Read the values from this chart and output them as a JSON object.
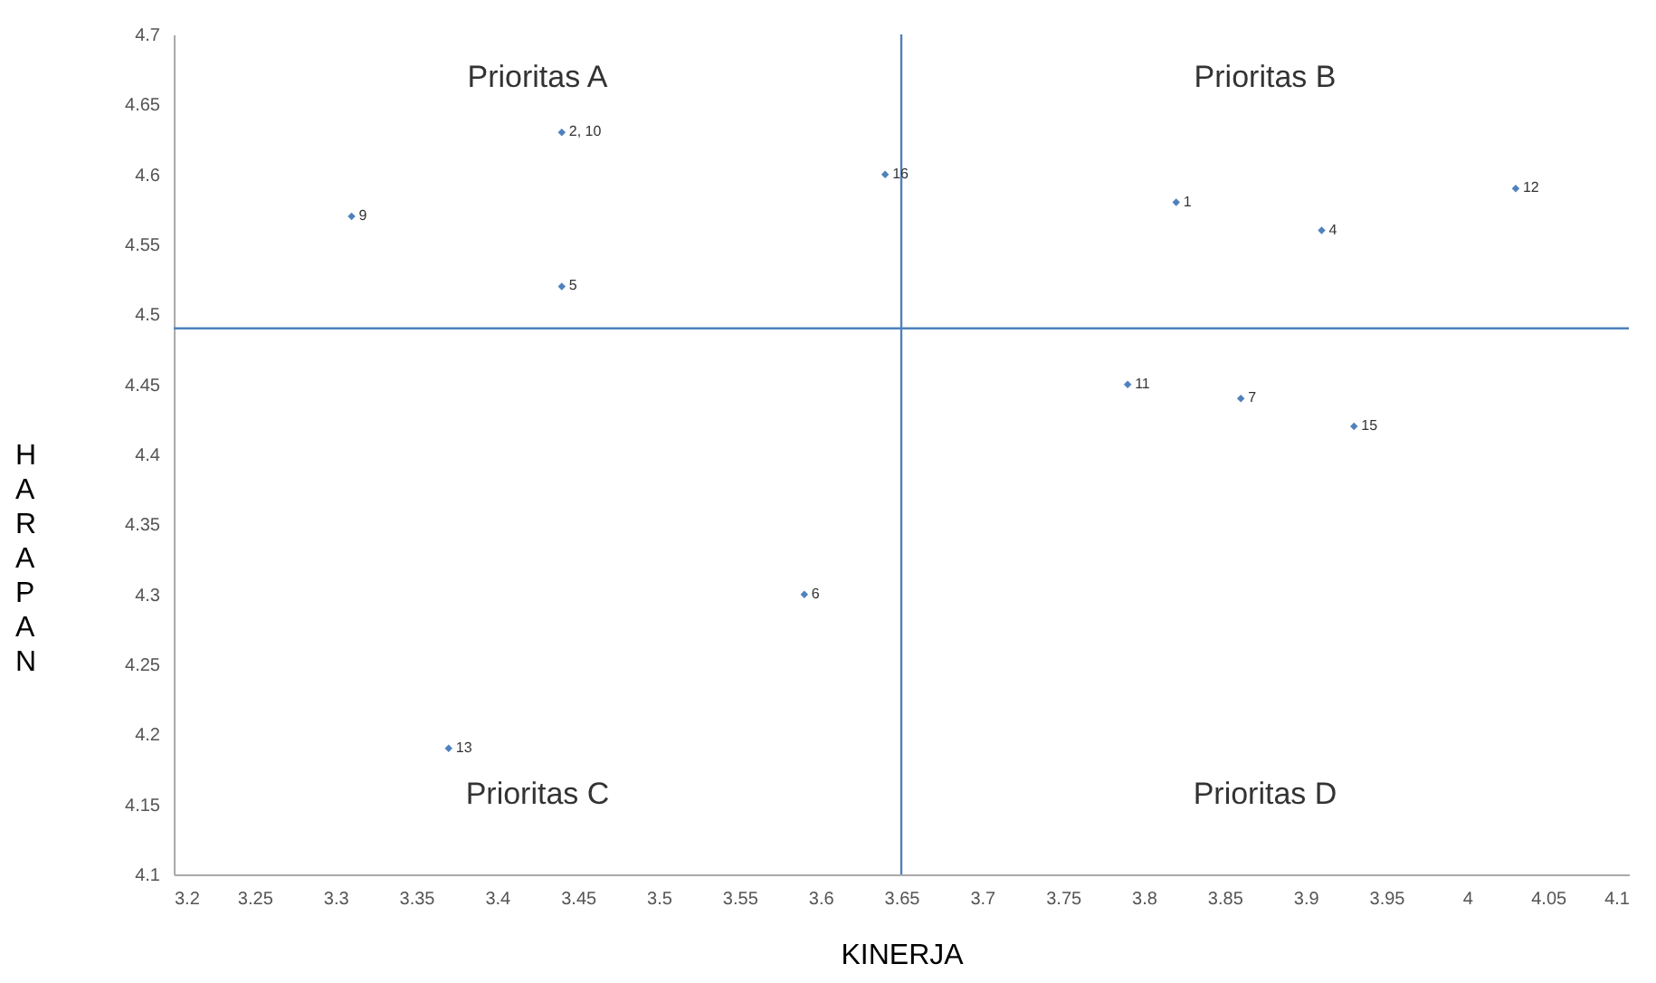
{
  "chart_data": {
    "type": "scatter",
    "xlabel": "KINERJA",
    "ylabel": "HARAPAN",
    "x": [
      3.44,
      3.31,
      3.44,
      3.64,
      3.82,
      3.91,
      4.03,
      3.79,
      3.86,
      3.93,
      3.59,
      3.37
    ],
    "series": [
      {
        "color": "#4f81bd",
        "values": [
          4.63,
          4.57,
          4.52,
          4.6,
          4.58,
          4.56,
          4.59,
          4.45,
          4.44,
          4.42,
          4.3,
          4.19
        ]
      }
    ],
    "marker": "diamond",
    "xlim": [
      3.2,
      4.1
    ],
    "xticks": [
      3.2,
      3.25,
      3.3,
      3.35,
      3.4,
      3.45,
      3.5,
      3.55,
      3.6,
      3.65,
      3.7,
      3.75,
      3.8,
      3.85,
      3.9,
      3.95,
      4,
      4.05,
      4.1
    ],
    "ylim": [
      4.1,
      4.7
    ],
    "yticks": [
      4.1,
      4.15,
      4.2,
      4.25,
      4.3,
      4.35,
      4.4,
      4.45,
      4.5,
      4.55,
      4.6,
      4.65,
      4.7
    ],
    "ref_lines": [
      {
        "axis": "x",
        "value": 3.65,
        "color": "#4f81bd"
      },
      {
        "axis": "y",
        "value": 4.49,
        "color": "#4f81bd"
      }
    ],
    "annotations": [
      "Prioritas A",
      "Prioritas B",
      "Prioritas C",
      "Prioritas D",
      {
        "text": "2, 10",
        "x": 3.44,
        "y": 4.63
      },
      {
        "text": "9",
        "x": 3.31,
        "y": 4.57
      },
      {
        "text": "5",
        "x": 3.44,
        "y": 4.52
      },
      {
        "text": "16",
        "x": 3.64,
        "y": 4.6
      },
      {
        "text": "1",
        "x": 3.82,
        "y": 4.58
      },
      {
        "text": "4",
        "x": 3.91,
        "y": 4.56
      },
      {
        "text": "12",
        "x": 4.03,
        "y": 4.59
      },
      {
        "text": "11",
        "x": 3.79,
        "y": 4.45
      },
      {
        "text": "7",
        "x": 3.86,
        "y": 4.44
      },
      {
        "text": "15",
        "x": 3.93,
        "y": 4.42
      },
      {
        "text": "6",
        "x": 3.59,
        "y": 4.3
      },
      {
        "text": "13",
        "x": 3.37,
        "y": 4.19
      }
    ],
    "grid": false
  }
}
